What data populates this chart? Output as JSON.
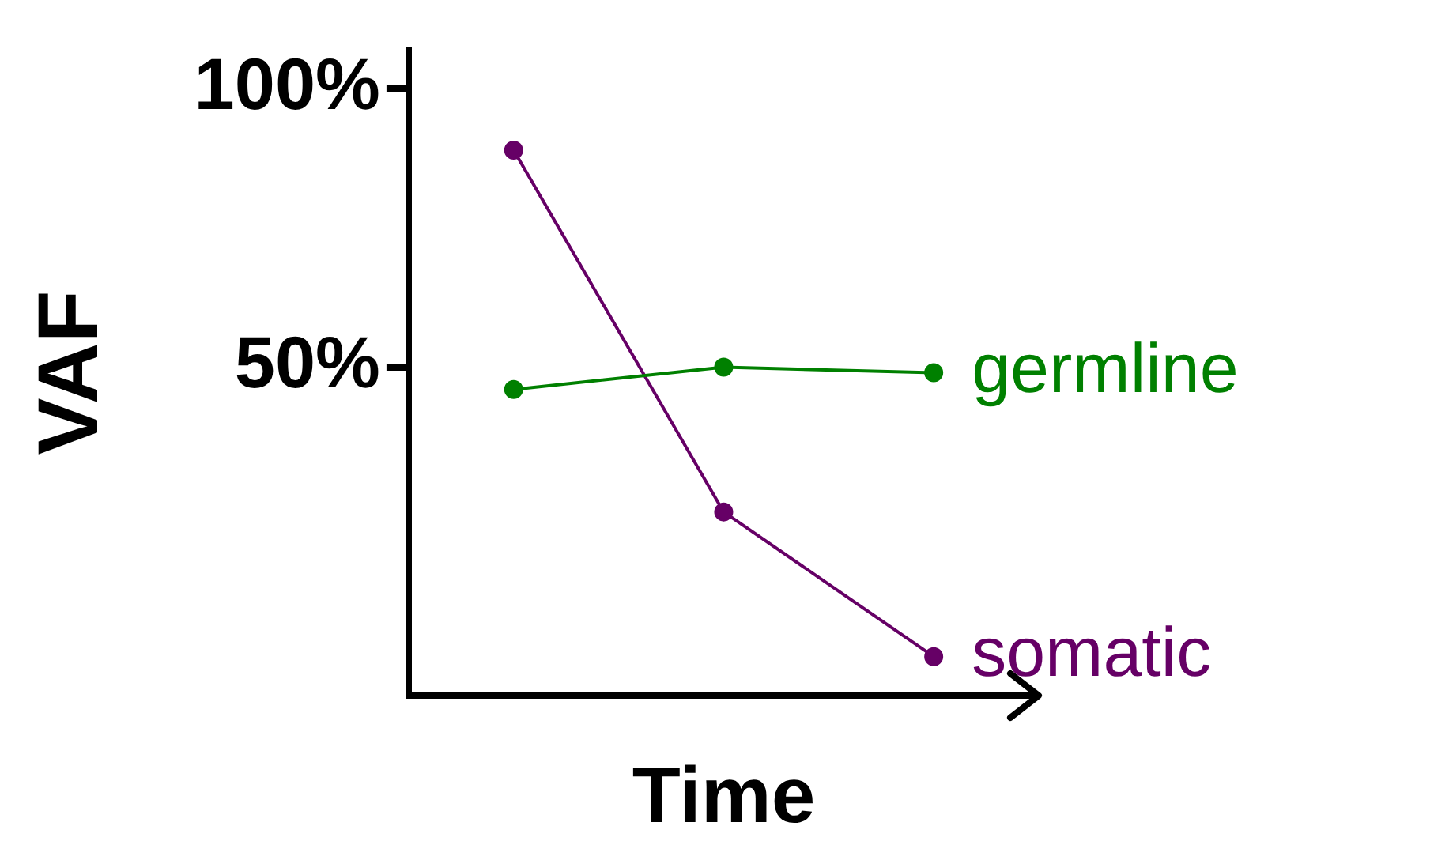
{
  "chart_data": {
    "type": "line",
    "xlabel": "Time",
    "ylabel": "VAF",
    "tick_labels": "y",
    "marker": "circle",
    "line_style": "solid",
    "grid": false,
    "legend": "right",
    "categories": [
      null,
      null,
      null
    ],
    "ylim": [
      -9,
      107
    ],
    "yticks": [
      {
        "value": 50,
        "label": "50%"
      },
      {
        "value": 100,
        "label": "100%"
      }
    ],
    "series": [
      {
        "name": "germline",
        "color": "#008000",
        "values": [
          46,
          50,
          49
        ]
      },
      {
        "name": "somatic",
        "color": "#660066",
        "values": [
          89,
          24,
          -2
        ]
      }
    ]
  }
}
